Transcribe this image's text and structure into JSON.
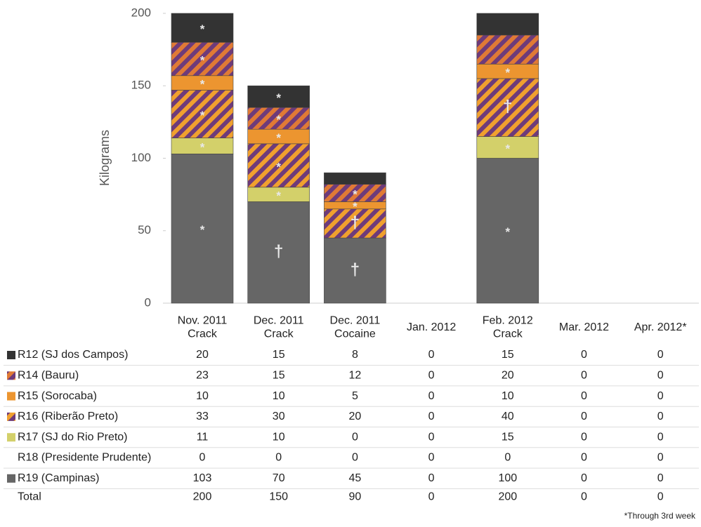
{
  "chart_data": {
    "type": "stacked_bar",
    "y_label": "Kilograms",
    "ylim": [
      0,
      200
    ],
    "yticks": [
      0,
      50,
      100,
      150,
      200
    ],
    "categories": [
      [
        "Nov. 2011",
        "Crack"
      ],
      [
        "Dec. 2011",
        "Crack"
      ],
      [
        "Dec. 2011",
        "Cocaine"
      ],
      [
        "Jan. 2012"
      ],
      [
        "Feb. 2012",
        "Crack"
      ],
      [
        "Mar. 2012"
      ],
      [
        "Apr. 2012*"
      ]
    ],
    "series": [
      {
        "name": "R12 (SJ dos Campos)",
        "color": "#333333",
        "values": [
          20,
          15,
          8,
          0,
          15,
          0,
          0
        ],
        "symbols": [
          "*",
          "*",
          null,
          null,
          null,
          null,
          null
        ]
      },
      {
        "name": "R14 (Bauru)",
        "color": "#6e3b7a",
        "pattern_color": "#e07a35",
        "values": [
          23,
          15,
          12,
          0,
          20,
          0,
          0
        ],
        "symbols": [
          "*",
          "*",
          "*",
          null,
          null,
          null,
          null
        ]
      },
      {
        "name": "R15 (Sorocaba)",
        "color": "#ec9530",
        "values": [
          10,
          10,
          5,
          0,
          10,
          0,
          0
        ],
        "symbols": [
          "*",
          "*",
          "*",
          null,
          "*",
          null,
          null
        ]
      },
      {
        "name": "R16 (Riberão Preto)",
        "color": "#f0a02e",
        "pattern_color": "#6e3b7a",
        "values": [
          33,
          30,
          20,
          0,
          40,
          0,
          0
        ],
        "symbols": [
          "*",
          "*",
          "†",
          null,
          "†",
          null,
          null
        ]
      },
      {
        "name": "R17 (SJ do Rio Preto)",
        "color": "#d3d06a",
        "values": [
          11,
          10,
          0,
          0,
          15,
          0,
          0
        ],
        "symbols": [
          "*",
          "*",
          null,
          null,
          "*",
          null,
          null
        ]
      },
      {
        "name": "R18 (Presidente Prudente)",
        "color": null,
        "values": [
          0,
          0,
          0,
          0,
          0,
          0,
          0
        ],
        "symbols": [
          null,
          null,
          null,
          null,
          null,
          null,
          null
        ]
      },
      {
        "name": "R19 (Campinas)",
        "color": "#666666",
        "values": [
          103,
          70,
          45,
          0,
          100,
          0,
          0
        ],
        "symbols": [
          "*",
          "†",
          "†",
          null,
          "*",
          null,
          null
        ]
      }
    ],
    "total_label": "Total",
    "totals": [
      200,
      150,
      90,
      0,
      200,
      0,
      0
    ],
    "footnote": "*Through 3rd week"
  }
}
